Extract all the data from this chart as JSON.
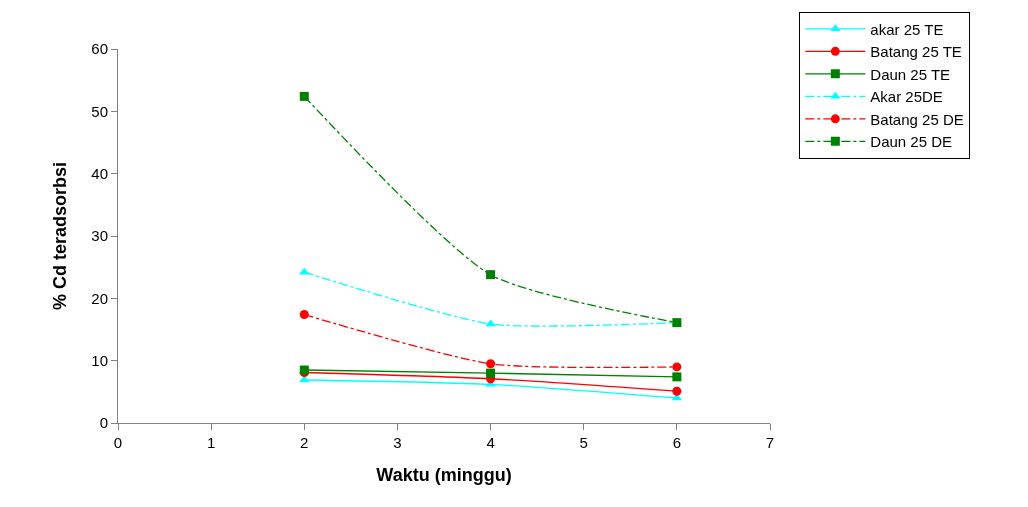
{
  "chart_data": {
    "type": "line",
    "xlabel": "Waktu (minggu)",
    "ylabel": "% Cd teradsorbsi",
    "xlim": [
      0,
      7
    ],
    "xticks": [
      0,
      1,
      2,
      3,
      4,
      5,
      6,
      7
    ],
    "ylim": [
      0,
      60
    ],
    "yticks": [
      0,
      10,
      20,
      30,
      40,
      50,
      60
    ],
    "grid": false,
    "legend": "top right",
    "x": [
      2,
      4,
      6
    ],
    "series": [
      {
        "name": "akar 25 TE",
        "color": "#00ffff",
        "marker": "triangle",
        "line_style": "solid",
        "values": [
          6.9,
          6.2,
          4.0
        ]
      },
      {
        "name": "Batang 25 TE",
        "color": "#ff0000",
        "marker": "circle",
        "line_style": "solid",
        "values": [
          8.1,
          7.1,
          5.1
        ]
      },
      {
        "name": "Daun 25 TE",
        "color": "#008000",
        "marker": "square",
        "line_style": "solid",
        "values": [
          8.5,
          8.0,
          7.4
        ]
      },
      {
        "name": "Akar 25DE",
        "color": "#00ffff",
        "marker": "triangle",
        "line_style": "dashed",
        "values": [
          24.2,
          15.9,
          16.1
        ]
      },
      {
        "name": "Batang 25 DE",
        "color": "#ff0000",
        "marker": "circle",
        "line_style": "dashed",
        "values": [
          17.4,
          9.5,
          9.0
        ]
      },
      {
        "name": "Daun 25 DE",
        "color": "#008000",
        "marker": "square",
        "line_style": "dashed",
        "values": [
          52.4,
          23.8,
          16.1
        ]
      }
    ]
  }
}
